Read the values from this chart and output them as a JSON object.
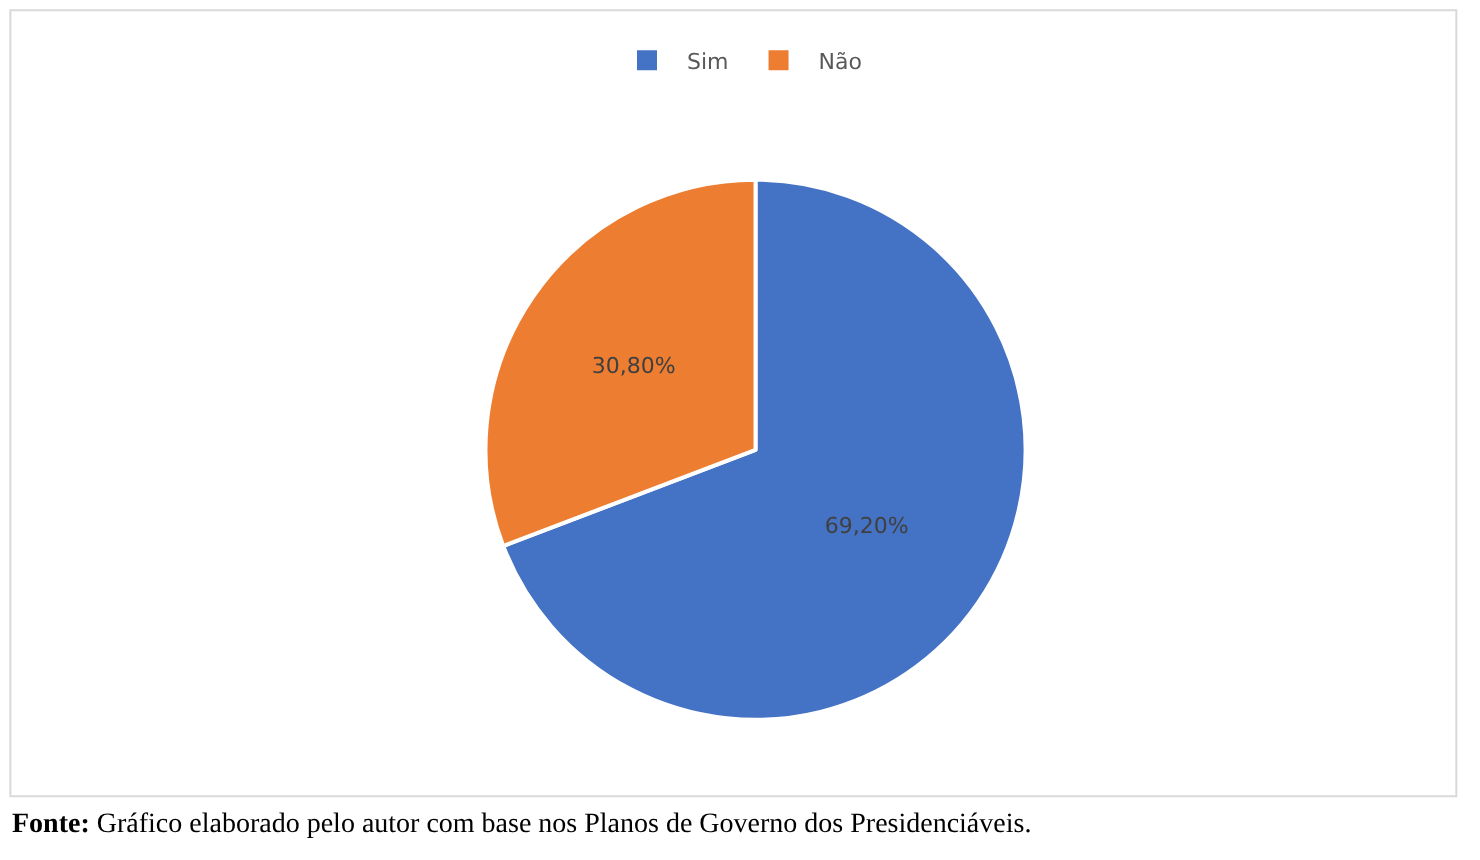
{
  "chart_data": {
    "type": "pie",
    "categories": [
      "Sim",
      "Não"
    ],
    "values": [
      69.2,
      30.8
    ],
    "colors": [
      "#4472c4",
      "#ed7d31"
    ],
    "value_labels": [
      "69,20%",
      "30,80%"
    ],
    "legend": "top",
    "annotations": [
      "Fonte: Gráfico elaborado pelo autor com base nos Planos de Governo dos Presidenciáveis."
    ]
  }
}
